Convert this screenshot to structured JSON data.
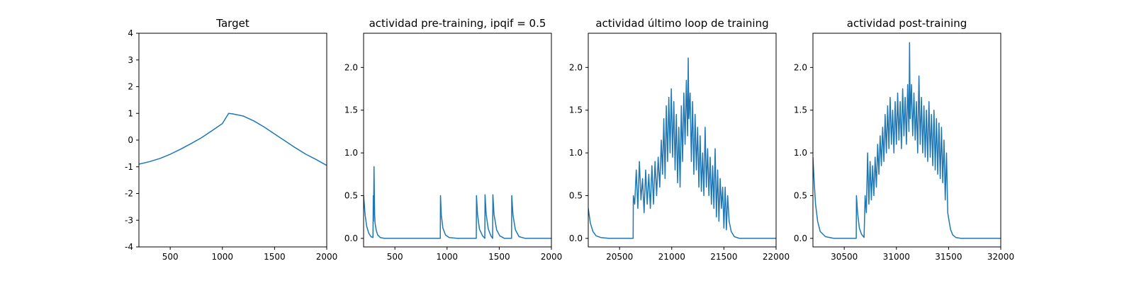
{
  "colors": {
    "series": "#1f77b4",
    "axes": "#000000",
    "background": "#ffffff"
  },
  "chart_data": [
    {
      "type": "line",
      "title": "Target",
      "xlabel": "",
      "ylabel": "",
      "xlim": [
        200,
        2000
      ],
      "ylim": [
        -4,
        4
      ],
      "xticks": [
        500,
        1000,
        1500,
        2000
      ],
      "yticks": [
        -4,
        -3,
        -2,
        -1,
        0,
        1,
        2,
        3,
        4
      ],
      "series": [
        {
          "x": [
            200,
            300,
            400,
            500,
            600,
            700,
            800,
            900,
            1000,
            1060,
            1100,
            1200,
            1300,
            1400,
            1500,
            1600,
            1700,
            1800,
            1900,
            2000
          ],
          "y": [
            -0.9,
            -0.81,
            -0.69,
            -0.53,
            -0.34,
            -0.13,
            0.09,
            0.35,
            0.62,
            1.0,
            0.98,
            0.9,
            0.72,
            0.49,
            0.23,
            -0.03,
            -0.29,
            -0.53,
            -0.73,
            -0.95
          ]
        }
      ]
    },
    {
      "type": "line",
      "title": "actividad pre-training, ipqif = 0.5",
      "xlabel": "",
      "ylabel": "",
      "xlim": [
        200,
        2000
      ],
      "ylim": [
        -0.1,
        2.4
      ],
      "xticks": [
        500,
        1000,
        1500,
        2000
      ],
      "yticks": [
        0.0,
        0.5,
        1.0,
        1.5,
        2.0
      ],
      "series": [
        {
          "x": [
            200,
            215,
            230,
            250,
            270,
            290,
            293,
            295,
            300,
            303,
            306,
            310,
            320,
            335,
            360,
            400,
            500,
            600,
            700,
            800,
            900,
            935,
            937,
            945,
            960,
            985,
            1020,
            1100,
            1200,
            1280,
            1282,
            1292,
            1310,
            1340,
            1362,
            1364,
            1375,
            1395,
            1420,
            1437,
            1439,
            1450,
            1475,
            1505,
            1550,
            1618,
            1620,
            1632,
            1655,
            1690,
            1750,
            1850,
            2000
          ],
          "y": [
            0.5,
            0.27,
            0.14,
            0.06,
            0.02,
            0.01,
            0.5,
            0.2,
            0.84,
            0.55,
            0.28,
            0.18,
            0.1,
            0.04,
            0.01,
            0.0,
            0.0,
            0.0,
            0.0,
            0.0,
            0.0,
            0.0,
            0.5,
            0.27,
            0.12,
            0.04,
            0.01,
            0.0,
            0.0,
            0.0,
            0.5,
            0.28,
            0.11,
            0.03,
            0.0,
            0.51,
            0.28,
            0.11,
            0.03,
            0.0,
            0.51,
            0.28,
            0.1,
            0.03,
            0.0,
            0.0,
            0.5,
            0.27,
            0.1,
            0.02,
            0.0,
            0.0,
            0.0
          ]
        }
      ]
    },
    {
      "type": "line",
      "title": "actividad último loop de training",
      "xlabel": "",
      "ylabel": "",
      "xlim": [
        20200,
        22000
      ],
      "ylim": [
        -0.1,
        2.4
      ],
      "xticks": [
        20500,
        21000,
        21500,
        22000
      ],
      "yticks": [
        0.0,
        0.5,
        1.0,
        1.5,
        2.0
      ],
      "series": [
        {
          "x": [
            20200,
            20220,
            20245,
            20275,
            20320,
            20400,
            20500,
            20600,
            20630,
            20632,
            20645,
            20660,
            20675,
            20690,
            20705,
            20720,
            20735,
            20750,
            20765,
            20780,
            20795,
            20810,
            20825,
            20840,
            20855,
            20870,
            20885,
            20900,
            20912,
            20924,
            20936,
            20948,
            20960,
            20972,
            20984,
            20996,
            21008,
            21020,
            21032,
            21044,
            21056,
            21068,
            21080,
            21092,
            21104,
            21116,
            21128,
            21140,
            21152,
            21158,
            21164,
            21176,
            21188,
            21200,
            21212,
            21224,
            21236,
            21248,
            21260,
            21272,
            21284,
            21296,
            21308,
            21320,
            21332,
            21344,
            21356,
            21368,
            21380,
            21392,
            21404,
            21416,
            21428,
            21440,
            21452,
            21464,
            21476,
            21488,
            21500,
            21512,
            21524,
            21536,
            21550,
            21570,
            21600,
            21650,
            21750,
            21900,
            22000
          ],
          "y": [
            0.35,
            0.18,
            0.08,
            0.03,
            0.01,
            0.0,
            0.0,
            0.0,
            0.0,
            0.5,
            0.4,
            0.8,
            0.35,
            0.9,
            0.45,
            0.7,
            0.3,
            0.8,
            0.4,
            0.75,
            0.35,
            0.85,
            0.4,
            0.9,
            0.5,
            0.95,
            0.6,
            1.15,
            0.75,
            1.4,
            0.7,
            1.55,
            0.9,
            1.65,
            1.0,
            1.75,
            0.95,
            1.6,
            0.8,
            1.45,
            0.65,
            1.3,
            0.6,
            1.55,
            0.9,
            1.7,
            1.1,
            1.85,
            1.2,
            2.11,
            1.4,
            1.7,
            0.9,
            1.6,
            0.75,
            1.45,
            0.8,
            1.3,
            0.6,
            1.2,
            0.55,
            1.0,
            0.5,
            1.3,
            0.6,
            1.05,
            0.5,
            0.95,
            0.4,
            0.85,
            0.35,
            1.05,
            0.25,
            0.8,
            0.2,
            0.7,
            0.35,
            0.6,
            0.12,
            0.6,
            0.1,
            0.5,
            0.2,
            0.08,
            0.02,
            0.0,
            0.0,
            0.0,
            0.0
          ]
        }
      ]
    },
    {
      "type": "line",
      "title": "actividad post-training",
      "xlabel": "",
      "ylabel": "",
      "xlim": [
        30200,
        32000
      ],
      "ylim": [
        -0.1,
        2.4
      ],
      "xticks": [
        30500,
        31000,
        31500,
        32000
      ],
      "yticks": [
        0.0,
        0.5,
        1.0,
        1.5,
        2.0
      ],
      "series": [
        {
          "x": [
            30200,
            30210,
            30225,
            30245,
            30270,
            30320,
            30400,
            30500,
            30600,
            30615,
            30617,
            30628,
            30645,
            30665,
            30690,
            30700,
            30712,
            30724,
            30736,
            30748,
            30760,
            30772,
            30784,
            30796,
            30808,
            30820,
            30832,
            30844,
            30856,
            30868,
            30880,
            30892,
            30904,
            30916,
            30928,
            30940,
            30952,
            30964,
            30976,
            30988,
            31000,
            31012,
            31024,
            31036,
            31048,
            31060,
            31072,
            31084,
            31096,
            31108,
            31120,
            31126,
            31132,
            31144,
            31156,
            31168,
            31180,
            31192,
            31204,
            31216,
            31228,
            31240,
            31252,
            31264,
            31276,
            31288,
            31300,
            31312,
            31324,
            31336,
            31348,
            31360,
            31372,
            31384,
            31396,
            31408,
            31420,
            31432,
            31444,
            31456,
            31468,
            31480,
            31492,
            31505,
            31520,
            31540,
            31570,
            31620,
            31700,
            31850,
            32000
          ],
          "y": [
            0.95,
            0.7,
            0.4,
            0.2,
            0.08,
            0.02,
            0.0,
            0.0,
            0.0,
            0.0,
            0.5,
            0.3,
            0.12,
            0.05,
            0.01,
            0.5,
            0.3,
            1.0,
            0.4,
            0.9,
            0.45,
            0.85,
            0.5,
            0.95,
            0.6,
            1.1,
            0.75,
            1.2,
            0.85,
            1.3,
            0.9,
            1.45,
            1.0,
            1.55,
            1.05,
            1.65,
            1.1,
            1.5,
            1.0,
            1.6,
            1.1,
            1.7,
            1.15,
            1.6,
            1.05,
            1.75,
            1.2,
            1.65,
            1.1,
            1.8,
            1.25,
            2.29,
            1.4,
            1.8,
            1.2,
            1.7,
            1.15,
            1.6,
            1.0,
            1.9,
            1.1,
            1.65,
            1.0,
            1.55,
            0.95,
            1.5,
            0.9,
            1.6,
            0.95,
            1.45,
            0.85,
            1.5,
            0.8,
            1.4,
            0.75,
            1.35,
            0.7,
            1.3,
            0.65,
            1.15,
            0.45,
            1.0,
            0.3,
            0.2,
            0.1,
            0.04,
            0.01,
            0.0,
            0.0,
            0.0,
            0.0
          ]
        }
      ]
    }
  ]
}
